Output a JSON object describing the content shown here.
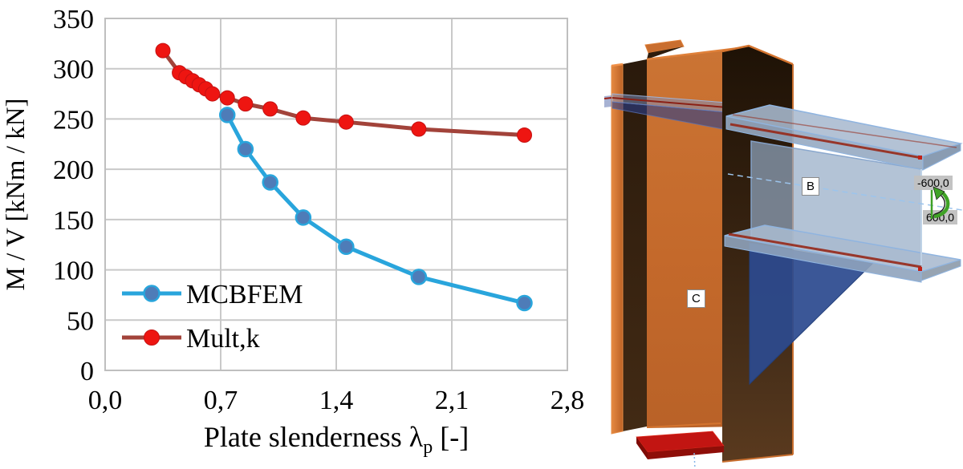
{
  "chart_data": {
    "type": "line",
    "title": "",
    "xlabel_main": "Plate slenderness λ",
    "xlabel_sub": "p",
    "xlabel_unit": " [-]",
    "xlabel": "Plate slenderness λp [-]",
    "ylabel": "M / V [kNm / kN]",
    "xlim": [
      0,
      2.8
    ],
    "ylim": [
      0,
      350
    ],
    "x_ticks": [
      0,
      0.7,
      1.4,
      2.1,
      2.8
    ],
    "x_tick_labels": [
      "0,0",
      "0,7",
      "1,4",
      "2,1",
      "2,8"
    ],
    "y_ticks": [
      0,
      50,
      100,
      150,
      200,
      250,
      300,
      350
    ],
    "y_tick_labels": [
      "0",
      "50",
      "100",
      "150",
      "200",
      "250",
      "300",
      "350"
    ],
    "grid": true,
    "legend_position": "inside lower-left",
    "grid_color": "#c9c9c9",
    "border_color": "#bfbfbf",
    "series": [
      {
        "name": "MCBFEM",
        "line_color": "#29A5DC",
        "marker_fill": "#4E7CB8",
        "marker_stroke": "#29A5DC",
        "x": [
          0.74,
          0.85,
          1.0,
          1.2,
          1.46,
          1.9,
          2.54
        ],
        "y": [
          254,
          220,
          187,
          152,
          123,
          93,
          67
        ]
      },
      {
        "name": "Mult,k",
        "line_color": "#A2433A",
        "marker_fill": "#EE1511",
        "marker_stroke": "#C51212",
        "x": [
          0.35,
          0.45,
          0.49,
          0.53,
          0.57,
          0.61,
          0.65,
          0.74,
          0.85,
          1.0,
          1.2,
          1.46,
          1.9,
          2.54
        ],
        "y": [
          318,
          296,
          292,
          288,
          284,
          280,
          275,
          271,
          265,
          260,
          251,
          247,
          240,
          234
        ]
      }
    ]
  },
  "model": {
    "beam_label": "B",
    "column_label": "C",
    "moment_label_top": "-600,0",
    "moment_label_bottom": "600,0",
    "colors": {
      "column_orange": "#C76F31",
      "column_dark_face": "#35220F",
      "beam_steel_blue": "#A7B9CC",
      "haunch_blue": "#2C4A8F",
      "base_plate_red": "#C21512",
      "moment_arrow_green": "#3FA226"
    }
  }
}
